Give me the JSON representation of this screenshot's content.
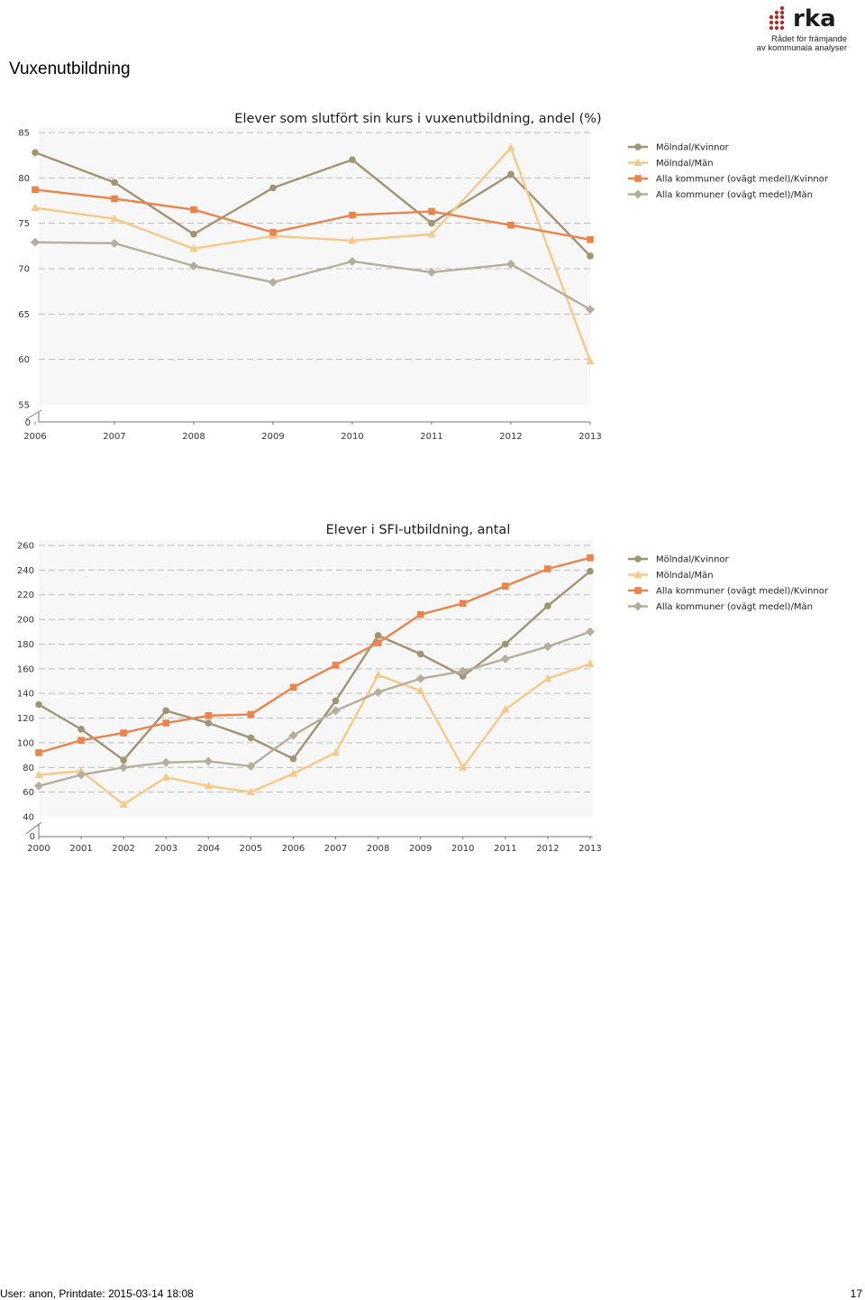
{
  "header": {
    "logo_text": "rka",
    "logo_tagline_1": "Rådet för främjande",
    "logo_tagline_2": "av kommunala analyser",
    "page_title": "Vuxenutbildning"
  },
  "footer": {
    "user_line": "User: anon, Printdate: 2015-03-14 18:08",
    "page_number": "17"
  },
  "series_colors": [
    "#a09473",
    "#f5c98a",
    "#e8844c",
    "#b6ae9d"
  ],
  "chart_data": [
    {
      "type": "line",
      "title": "Elever som slutfört sin kurs i vuxenutbildning, andel (%)",
      "xlabel": "",
      "ylabel": "",
      "x": [
        "2006",
        "2007",
        "2008",
        "2009",
        "2010",
        "2011",
        "2012",
        "2013"
      ],
      "ylim": [
        55,
        85
      ],
      "y_ticks": [
        55,
        60,
        65,
        70,
        75,
        80,
        85
      ],
      "y_axis_break_label": "0",
      "grid": true,
      "legend_position": "right",
      "series": [
        {
          "name": "Mölndal/Kvinnor",
          "marker": "circle",
          "values": [
            82.8,
            79.5,
            73.8,
            78.9,
            82.0,
            75.0,
            80.4,
            71.4
          ]
        },
        {
          "name": "Mölndal/Män",
          "marker": "triangle",
          "values": [
            76.7,
            75.5,
            72.2,
            73.6,
            73.1,
            73.8,
            83.3,
            59.8
          ]
        },
        {
          "name": "Alla kommuner (ovägt medel)/Kvinnor",
          "marker": "square",
          "values": [
            78.7,
            77.7,
            76.5,
            74.0,
            75.9,
            76.3,
            74.8,
            73.2
          ]
        },
        {
          "name": "Alla kommuner (ovägt medel)/Män",
          "marker": "diamond",
          "values": [
            72.9,
            72.8,
            70.3,
            68.5,
            70.8,
            69.6,
            70.5,
            65.5
          ]
        }
      ]
    },
    {
      "type": "line",
      "title": "Elever i SFI-utbildning, antal",
      "xlabel": "",
      "ylabel": "",
      "x": [
        "2000",
        "2001",
        "2002",
        "2003",
        "2004",
        "2005",
        "2006",
        "2007",
        "2008",
        "2009",
        "2010",
        "2011",
        "2012",
        "2013"
      ],
      "ylim": [
        40,
        260
      ],
      "y_ticks": [
        40,
        60,
        80,
        100,
        120,
        140,
        160,
        180,
        200,
        220,
        240,
        260
      ],
      "y_axis_break_label": "0",
      "grid": true,
      "legend_position": "right",
      "series": [
        {
          "name": "Mölndal/Kvinnor",
          "marker": "circle",
          "values": [
            131,
            111,
            86,
            126,
            116,
            104,
            87,
            134,
            187,
            172,
            154,
            180,
            211,
            239
          ]
        },
        {
          "name": "Mölndal/Män",
          "marker": "triangle",
          "values": [
            74,
            77,
            50,
            72,
            65,
            60,
            75,
            92,
            155,
            142,
            80,
            127,
            152,
            164
          ]
        },
        {
          "name": "Alla kommuner (ovägt medel)/Kvinnor",
          "marker": "square",
          "values": [
            92,
            102,
            108,
            116,
            122,
            123,
            145,
            163,
            181,
            204,
            213,
            227,
            241,
            250
          ]
        },
        {
          "name": "Alla kommuner (ovägt medel)/Män",
          "marker": "diamond",
          "values": [
            65,
            74,
            80,
            84,
            85,
            81,
            106,
            126,
            141,
            152,
            158,
            168,
            178,
            190
          ]
        }
      ]
    }
  ]
}
